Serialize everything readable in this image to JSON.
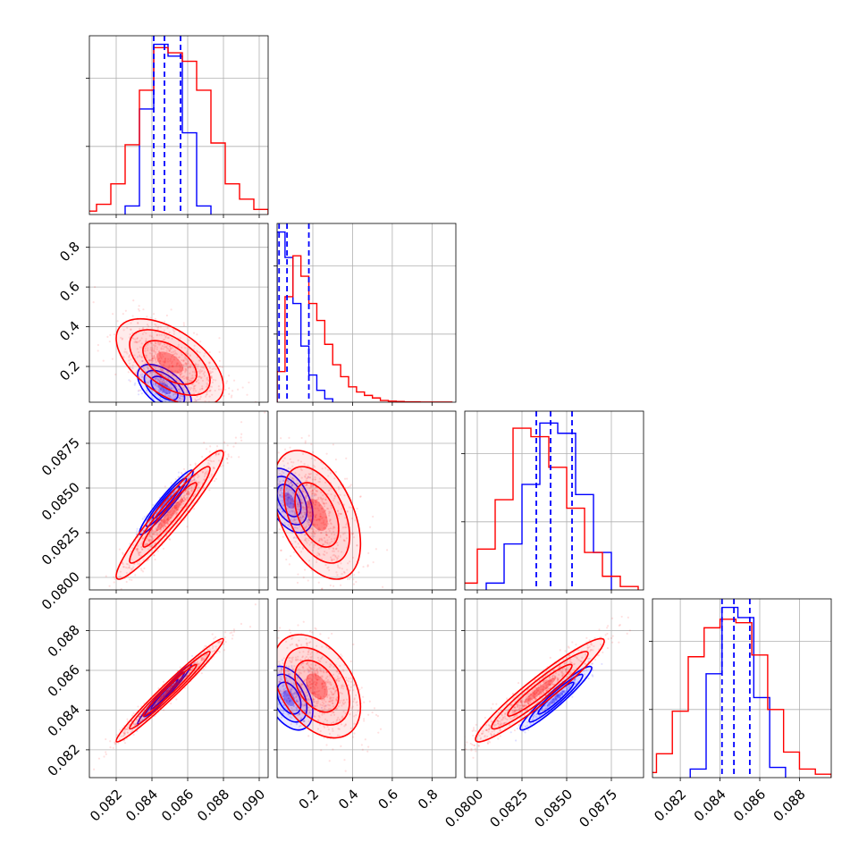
{
  "chart_data": {
    "type": "corner",
    "parameters": 4,
    "series": [
      {
        "color": "#0000ff",
        "marginals": [
          {
            "bins": [
              0.0825,
              0.0833,
              0.0841,
              0.0849,
              0.0857,
              0.0865,
              0.0873
            ],
            "counts": [
              0.05,
              0.62,
              1.0,
              0.93,
              0.48,
              0.05
            ]
          },
          {
            "bins": [
              0.02,
              0.06,
              0.1,
              0.14,
              0.18,
              0.22,
              0.26,
              0.3
            ],
            "counts": [
              1.0,
              0.85,
              0.58,
              0.33,
              0.16,
              0.07,
              0.02
            ]
          },
          {
            "bins": [
              0.0805,
              0.0815,
              0.0825,
              0.0835,
              0.0845,
              0.0855,
              0.0865,
              0.0875
            ],
            "counts": [
              0.04,
              0.27,
              0.62,
              0.98,
              0.92,
              0.56,
              0.22
            ]
          },
          {
            "bins": [
              0.0825,
              0.0833,
              0.0841,
              0.0849,
              0.0857,
              0.0865,
              0.0873
            ],
            "counts": [
              0.05,
              0.61,
              1.0,
              0.94,
              0.47,
              0.06
            ]
          }
        ],
        "quantiles": [
          [
            0.0841,
            0.0847,
            0.0856
          ],
          [
            0.03,
            0.07,
            0.18
          ],
          [
            0.0833,
            0.0841,
            0.0853
          ],
          [
            0.0841,
            0.0847,
            0.0855
          ]
        ]
      },
      {
        "color": "#ff0000",
        "marginals": [
          {
            "bins": [
              0.0801,
              0.0809,
              0.0817,
              0.0825,
              0.0833,
              0.0841,
              0.0849,
              0.0857,
              0.0865,
              0.0873,
              0.0881,
              0.0889,
              0.0897,
              0.0905
            ],
            "counts": [
              0.02,
              0.06,
              0.18,
              0.41,
              0.73,
              0.98,
              0.95,
              0.9,
              0.73,
              0.42,
              0.18,
              0.09,
              0.03
            ]
          },
          {
            "bins": [
              0.02,
              0.06,
              0.1,
              0.14,
              0.18,
              0.22,
              0.26,
              0.3,
              0.34,
              0.38,
              0.42,
              0.46,
              0.5,
              0.54,
              0.58,
              0.62,
              0.66,
              0.7,
              0.74,
              0.78,
              0.82,
              0.86,
              0.9
            ],
            "counts": [
              0.18,
              0.62,
              0.86,
              0.74,
              0.58,
              0.48,
              0.34,
              0.22,
              0.15,
              0.09,
              0.06,
              0.04,
              0.025,
              0.01,
              0.006,
              0.004,
              0.002,
              0.002,
              0.001,
              0.001,
              0.001,
              0.001
            ]
          },
          {
            "bins": [
              0.079,
              0.08,
              0.081,
              0.082,
              0.083,
              0.084,
              0.085,
              0.086,
              0.087,
              0.088,
              0.089
            ],
            "counts": [
              0.04,
              0.24,
              0.53,
              0.95,
              0.9,
              0.72,
              0.48,
              0.22,
              0.08,
              0.02
            ]
          },
          {
            "bins": [
              0.08,
              0.0808,
              0.0816,
              0.0824,
              0.0832,
              0.084,
              0.0848,
              0.0856,
              0.0864,
              0.0872,
              0.088,
              0.0888,
              0.0896
            ],
            "counts": [
              0.03,
              0.14,
              0.39,
              0.71,
              0.88,
              0.93,
              0.91,
              0.72,
              0.4,
              0.15,
              0.05,
              0.02
            ]
          }
        ]
      }
    ],
    "axes": [
      {
        "range": [
          0.0805,
          0.0905
        ],
        "ticks": [
          0.082,
          0.084,
          0.086,
          0.088,
          0.09
        ],
        "tick_labels": [
          "0.082",
          "0.084",
          "0.086",
          "0.088",
          "0.090"
        ]
      },
      {
        "range": [
          0.02,
          0.92
        ],
        "ticks": [
          0.2,
          0.4,
          0.6,
          0.8
        ],
        "tick_labels": [
          "0.2",
          "0.4",
          "0.6",
          "0.8"
        ]
      },
      {
        "range": [
          0.0793,
          0.0893
        ],
        "ticks": [
          0.08,
          0.0825,
          0.085,
          0.0875
        ],
        "tick_labels": [
          "0.0800",
          "0.0825",
          "0.0850",
          "0.0875"
        ]
      },
      {
        "range": [
          0.0806,
          0.0896
        ],
        "ticks": [
          0.082,
          0.084,
          0.086,
          0.088
        ],
        "tick_labels": [
          "0.082",
          "0.084",
          "0.086",
          "0.088"
        ]
      }
    ],
    "pairs": [
      {
        "row": 1,
        "col": 0,
        "rho": -0.55,
        "series": [
          {
            "color": "#0000ff",
            "mean": [
              0.0847,
              0.09
            ],
            "sd": [
              0.00075,
              0.06
            ]
          },
          {
            "color": "#ff0000",
            "mean": [
              0.085,
              0.22
            ],
            "sd": [
              0.0015,
              0.11
            ]
          }
        ]
      },
      {
        "row": 2,
        "col": 0,
        "rho": 0.95,
        "series": [
          {
            "color": "#0000ff",
            "mean": [
              0.0848,
              0.0842
            ],
            "sd": [
              0.00075,
              0.0009
            ]
          },
          {
            "color": "#ff0000",
            "mean": [
              0.085,
              0.0835
            ],
            "sd": [
              0.0015,
              0.0018
            ]
          }
        ]
      },
      {
        "row": 2,
        "col": 1,
        "rho": -0.45,
        "series": [
          {
            "color": "#0000ff",
            "mean": [
              0.08,
              0.0843
            ],
            "sd": [
              0.06,
              0.0009
            ]
          },
          {
            "color": "#ff0000",
            "mean": [
              0.22,
              0.0835
            ],
            "sd": [
              0.11,
              0.0018
            ]
          }
        ]
      },
      {
        "row": 3,
        "col": 0,
        "rho": 0.98,
        "series": [
          {
            "color": "#0000ff",
            "mean": [
              0.0847,
              0.0848
            ],
            "sd": [
              0.00075,
              0.00075
            ]
          },
          {
            "color": "#ff0000",
            "mean": [
              0.085,
              0.085
            ],
            "sd": [
              0.0015,
              0.0013
            ]
          }
        ]
      },
      {
        "row": 3,
        "col": 1,
        "rho": -0.4,
        "series": [
          {
            "color": "#0000ff",
            "mean": [
              0.08,
              0.0846
            ],
            "sd": [
              0.06,
              0.0008
            ]
          },
          {
            "color": "#ff0000",
            "mean": [
              0.22,
              0.0852
            ],
            "sd": [
              0.11,
              0.0013
            ]
          }
        ]
      },
      {
        "row": 3,
        "col": 2,
        "rho": 0.95,
        "series": [
          {
            "color": "#0000ff",
            "mean": [
              0.0844,
              0.0846
            ],
            "sd": [
              0.001,
              0.0008
            ]
          },
          {
            "color": "#ff0000",
            "mean": [
              0.0835,
              0.085
            ],
            "sd": [
              0.0018,
              0.0013
            ]
          }
        ]
      }
    ],
    "grid": true
  }
}
